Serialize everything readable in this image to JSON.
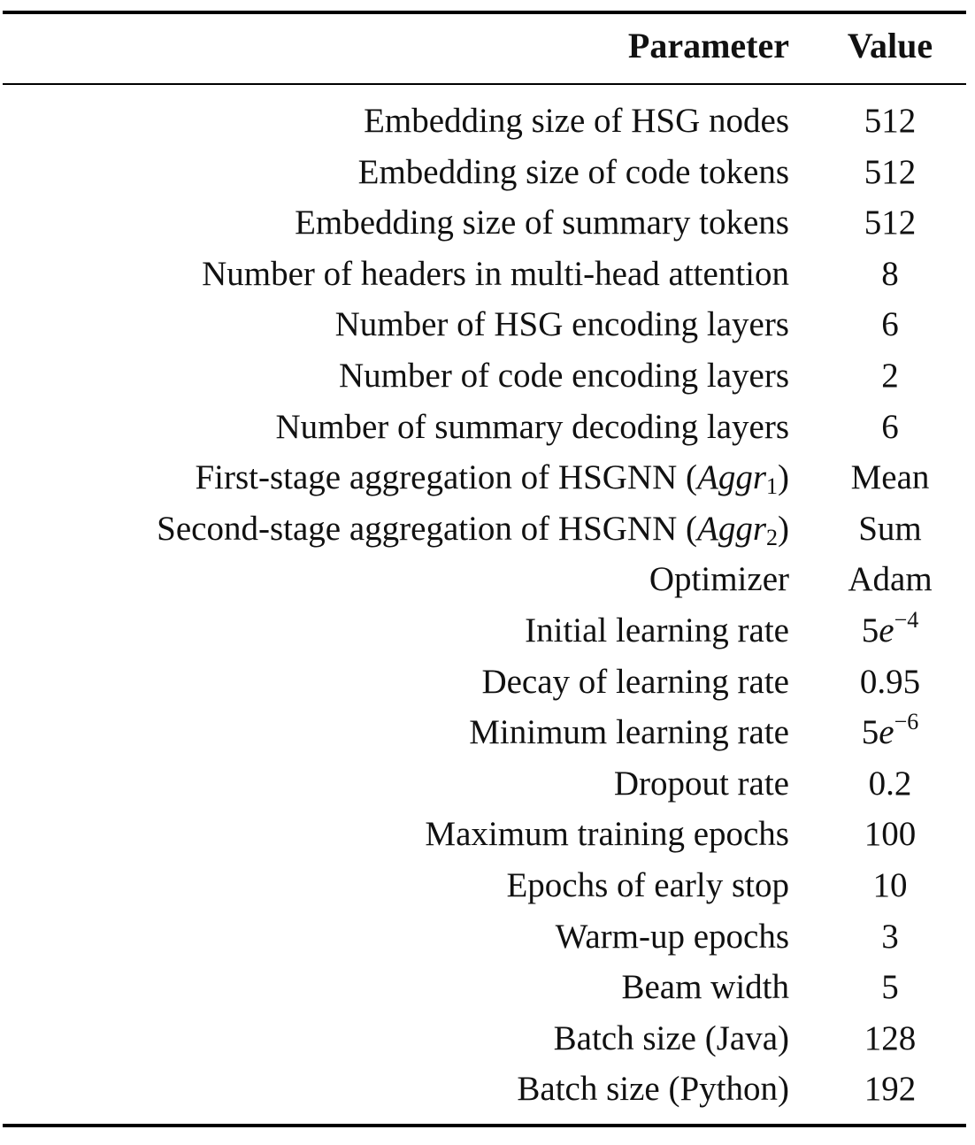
{
  "table": {
    "headers": {
      "parameter": "Parameter",
      "value": "Value"
    },
    "rows": [
      {
        "parameter": "Embedding size of HSG nodes",
        "value": "512"
      },
      {
        "parameter": "Embedding size of code tokens",
        "value": "512"
      },
      {
        "parameter": "Embedding size of summary tokens",
        "value": "512"
      },
      {
        "parameter": "Number of headers in multi-head attention",
        "value": "8"
      },
      {
        "parameter": "Number of HSG encoding layers",
        "value": "6"
      },
      {
        "parameter": "Number of code encoding layers",
        "value": "2"
      },
      {
        "parameter": "Number of summary decoding layers",
        "value": "6"
      },
      {
        "parameter": "First-stage aggregation of HSGNN (",
        "param_italic": "Aggr",
        "param_sub": "1",
        "param_suffix": ")",
        "value": "Mean"
      },
      {
        "parameter": "Second-stage aggregation of HSGNN (",
        "param_italic": "Aggr",
        "param_sub": "2",
        "param_suffix": ")",
        "value": "Sum"
      },
      {
        "parameter": "Optimizer",
        "value": "Adam"
      },
      {
        "parameter": "Initial learning rate",
        "value": "5",
        "value_italic": "e",
        "value_sup": "−4"
      },
      {
        "parameter": "Decay of learning rate",
        "value": "0.95"
      },
      {
        "parameter": "Minimum learning rate",
        "value": "5",
        "value_italic": "e",
        "value_sup": "−6"
      },
      {
        "parameter": "Dropout rate",
        "value": "0.2"
      },
      {
        "parameter": "Maximum training epochs",
        "value": "100"
      },
      {
        "parameter": "Epochs of early stop",
        "value": "10"
      },
      {
        "parameter": "Warm-up epochs",
        "value": "3"
      },
      {
        "parameter": "Beam width",
        "value": "5"
      },
      {
        "parameter": "Batch size (Java)",
        "value": "128"
      },
      {
        "parameter": "Batch size (Python)",
        "value": "192"
      }
    ]
  }
}
